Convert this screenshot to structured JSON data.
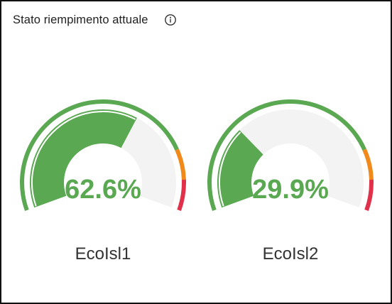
{
  "widget": {
    "title": "Stato riempimento attuale",
    "info_icon": "info-circle-icon"
  },
  "gauges": [
    {
      "label": "EcoIsl1",
      "value": 62.6,
      "display": "62.6%"
    },
    {
      "label": "EcoIsl2",
      "value": 29.9,
      "display": "29.9%"
    }
  ],
  "thresholds": [
    {
      "from": 0,
      "to": 80,
      "color": "#5aa852"
    },
    {
      "from": 80,
      "to": 90,
      "color": "#f28a1b"
    },
    {
      "from": 90,
      "to": 100,
      "color": "#e0304a"
    }
  ],
  "colors": {
    "fill": "#5aa852",
    "track": "#f2f3f2",
    "value_text": "#5aa852"
  }
}
